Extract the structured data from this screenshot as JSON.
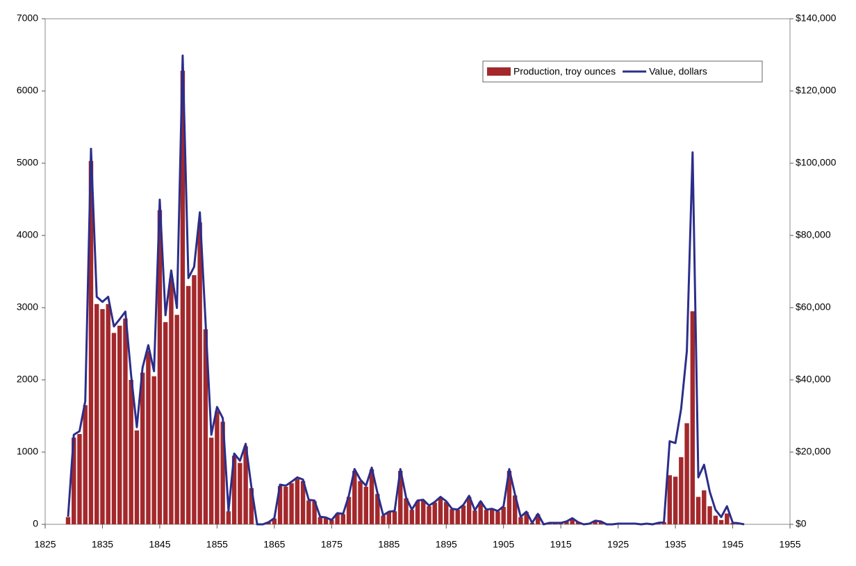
{
  "chart_data": {
    "type": "bar-line",
    "x": [
      1829,
      1830,
      1831,
      1832,
      1833,
      1834,
      1835,
      1836,
      1837,
      1838,
      1839,
      1840,
      1841,
      1842,
      1843,
      1844,
      1845,
      1846,
      1847,
      1848,
      1849,
      1850,
      1851,
      1852,
      1853,
      1854,
      1855,
      1856,
      1857,
      1858,
      1859,
      1860,
      1861,
      1862,
      1863,
      1864,
      1865,
      1866,
      1867,
      1868,
      1869,
      1870,
      1871,
      1872,
      1873,
      1874,
      1875,
      1876,
      1877,
      1878,
      1879,
      1880,
      1881,
      1882,
      1883,
      1884,
      1885,
      1886,
      1887,
      1888,
      1889,
      1890,
      1891,
      1892,
      1893,
      1894,
      1895,
      1896,
      1897,
      1898,
      1899,
      1900,
      1901,
      1902,
      1903,
      1904,
      1905,
      1906,
      1907,
      1908,
      1909,
      1910,
      1911,
      1912,
      1913,
      1914,
      1915,
      1916,
      1917,
      1918,
      1919,
      1920,
      1921,
      1922,
      1923,
      1924,
      1925,
      1926,
      1927,
      1928,
      1929,
      1930,
      1931,
      1932,
      1933,
      1934,
      1935,
      1936,
      1937,
      1938,
      1939,
      1940,
      1941,
      1942,
      1943,
      1944,
      1945,
      1946,
      1947
    ],
    "series": [
      {
        "name": "Production, troy ounces",
        "color": "#a3282c",
        "values": [
          100,
          1200,
          1250,
          1650,
          5030,
          3050,
          2980,
          3050,
          2650,
          2750,
          2850,
          2000,
          1300,
          2100,
          2400,
          2050,
          4350,
          2800,
          3400,
          2900,
          6280,
          3300,
          3450,
          4180,
          2700,
          1200,
          1570,
          1420,
          180,
          950,
          850,
          1080,
          500,
          0,
          0,
          30,
          80,
          530,
          520,
          570,
          630,
          600,
          330,
          320,
          100,
          90,
          60,
          150,
          140,
          380,
          740,
          600,
          520,
          760,
          420,
          120,
          170,
          180,
          740,
          360,
          200,
          320,
          330,
          250,
          300,
          370,
          310,
          210,
          200,
          260,
          380,
          190,
          310,
          200,
          210,
          180,
          240,
          740,
          400,
          100,
          170,
          20,
          140,
          0,
          20,
          20,
          20,
          40,
          80,
          30,
          0,
          10,
          50,
          40,
          0,
          0,
          10,
          10,
          10,
          10,
          0,
          10,
          0,
          20,
          30,
          680,
          660,
          930,
          1400,
          2950,
          380,
          470,
          250,
          120,
          60,
          150,
          20,
          10,
          0
        ]
      },
      {
        "name": "Value, dollars",
        "color": "#2b2e8a",
        "axis": "y2",
        "values": [
          2100,
          24800,
          25800,
          34100,
          104000,
          63000,
          61600,
          63000,
          54800,
          56800,
          58900,
          41300,
          26900,
          43400,
          49600,
          42400,
          89900,
          57900,
          70300,
          59900,
          129800,
          68200,
          71300,
          86400,
          55800,
          24800,
          32500,
          29400,
          3700,
          19600,
          17600,
          22300,
          10300,
          0,
          0,
          600,
          1700,
          11000,
          10700,
          11800,
          13000,
          12400,
          6800,
          6600,
          2100,
          1900,
          1200,
          3100,
          2900,
          7900,
          15300,
          12400,
          10700,
          15700,
          8700,
          2500,
          3500,
          3700,
          15300,
          7400,
          4100,
          6600,
          6800,
          5200,
          6200,
          7600,
          6400,
          4300,
          4100,
          5400,
          7900,
          3900,
          6400,
          4100,
          4300,
          3700,
          5000,
          15300,
          8300,
          2100,
          3500,
          400,
          2900,
          0,
          400,
          400,
          400,
          800,
          1700,
          600,
          0,
          200,
          1000,
          800,
          0,
          0,
          200,
          200,
          200,
          200,
          0,
          200,
          0,
          400,
          600,
          23000,
          22500,
          32000,
          48000,
          103000,
          13000,
          16500,
          9000,
          4000,
          2000,
          5000,
          500,
          300,
          0
        ]
      }
    ],
    "xlim": [
      1825,
      1955
    ],
    "xticks": [
      1825,
      1835,
      1845,
      1855,
      1865,
      1875,
      1885,
      1895,
      1905,
      1915,
      1925,
      1935,
      1945,
      1955
    ],
    "ylim": [
      0,
      7000
    ],
    "yticks": [
      0,
      1000,
      2000,
      3000,
      4000,
      5000,
      6000,
      7000
    ],
    "y2lim": [
      0,
      140000
    ],
    "y2ticks": [
      {
        "value": 0,
        "label": "$0"
      },
      {
        "value": 20000,
        "label": "$20,000"
      },
      {
        "value": 40000,
        "label": "$40,000"
      },
      {
        "value": 60000,
        "label": "$60,000"
      },
      {
        "value": 80000,
        "label": "$80,000"
      },
      {
        "value": 100000,
        "label": "$100,000"
      },
      {
        "value": 120000,
        "label": "$120,000"
      },
      {
        "value": 140000,
        "label": "$140,000"
      }
    ],
    "legend": "upper right"
  }
}
